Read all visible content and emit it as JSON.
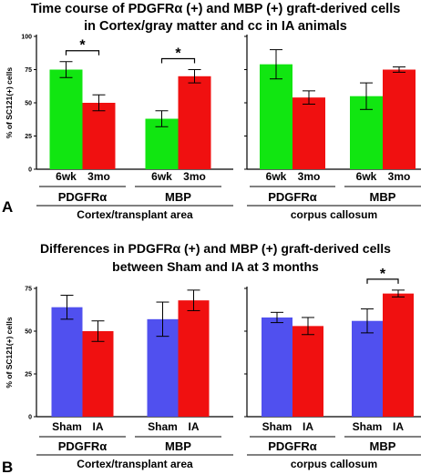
{
  "chart_data": [
    {
      "type": "bar",
      "panel_letter": "A",
      "title_lines": [
        "Time course of PDGFRα (+) and MBP (+) graft-derived cells",
        "in Cortex/gray matter and cc in IA animals"
      ],
      "ylabel": "% of SC121(+) cells",
      "ylim": [
        0,
        100
      ],
      "yticks": [
        "100",
        "75",
        "50",
        "25",
        "0"
      ],
      "series_colors": [
        "#11e611",
        "#f01010"
      ],
      "groups": [
        {
          "label": "PDGFRα",
          "categories": [
            "6wk",
            "3mo"
          ],
          "values": [
            75,
            50
          ],
          "errors": [
            6,
            6
          ],
          "significance": "*"
        },
        {
          "label": "MBP",
          "categories": [
            "6wk",
            "3mo"
          ],
          "values": [
            38,
            70
          ],
          "errors": [
            6,
            5
          ],
          "significance": "*"
        },
        {
          "label": "PDGFRα",
          "categories": [
            "6wk",
            "3mo"
          ],
          "values": [
            79,
            54
          ],
          "errors": [
            11,
            5
          ],
          "significance": ""
        },
        {
          "label": "MBP",
          "categories": [
            "6wk",
            "3mo"
          ],
          "values": [
            55,
            75
          ],
          "errors": [
            10,
            2
          ],
          "significance": ""
        }
      ],
      "regions": [
        "Cortex/transplant area",
        "corpus callosum"
      ]
    },
    {
      "type": "bar",
      "panel_letter": "B",
      "title_lines": [
        "Differences in PDGFRα (+) and MBP (+) graft-derived cells",
        "between Sham and IA at 3 months"
      ],
      "ylabel": "% of SC121(+) cells",
      "ylim": [
        0,
        75
      ],
      "yticks": [
        "75",
        "50",
        "25",
        "0"
      ],
      "series_colors": [
        "#5050ef",
        "#f01010"
      ],
      "groups": [
        {
          "label": "PDGFRα",
          "categories": [
            "Sham",
            "IA"
          ],
          "values": [
            64,
            50
          ],
          "errors": [
            7,
            6
          ],
          "significance": ""
        },
        {
          "label": "MBP",
          "categories": [
            "Sham",
            "IA"
          ],
          "values": [
            57,
            68
          ],
          "errors": [
            10,
            6
          ],
          "significance": ""
        },
        {
          "label": "PDGFRα",
          "categories": [
            "Sham",
            "IA"
          ],
          "values": [
            58,
            53
          ],
          "errors": [
            3,
            5
          ],
          "significance": ""
        },
        {
          "label": "MBP",
          "categories": [
            "Sham",
            "IA"
          ],
          "values": [
            56,
            72
          ],
          "errors": [
            7,
            2
          ],
          "significance": "*"
        }
      ],
      "regions": [
        "Cortex/transplant area",
        "corpus callosum"
      ]
    }
  ]
}
